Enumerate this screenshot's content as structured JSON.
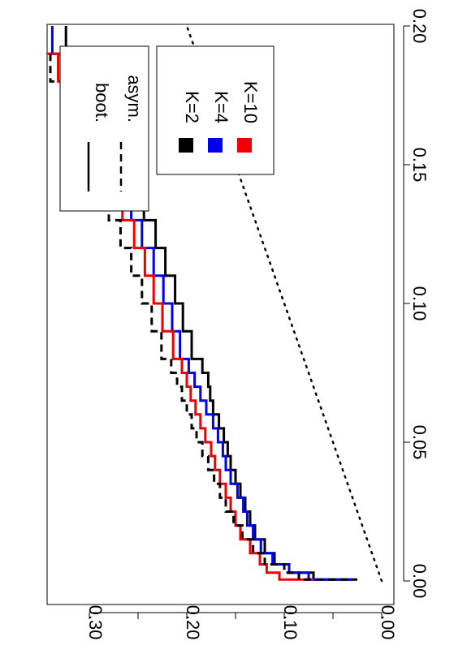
{
  "chart_data": {
    "type": "line",
    "orientation": "rotated-90-clockwise",
    "title": "",
    "xlabel": "",
    "ylabel": "",
    "xlim": [
      0,
      0.2
    ],
    "ylim": [
      0,
      0.36
    ],
    "x_ticks": [
      0.0,
      0.05,
      0.1,
      0.15,
      0.2
    ],
    "x_tick_labels": [
      "0.00",
      "0.05",
      "0.10",
      "0.15",
      "0.20"
    ],
    "y_ticks": [
      0.0,
      0.05,
      0.1,
      0.15,
      0.2,
      0.25,
      0.3
    ],
    "y_tick_labels": [
      "0.00",
      "0.10",
      "0.20",
      "0.30"
    ],
    "grid": false,
    "legends": [
      {
        "placement": "top-left",
        "entries": [
          {
            "label": "boot.",
            "style": "solid"
          },
          {
            "label": "asym.",
            "style": "dashed"
          }
        ]
      },
      {
        "placement": "top-left",
        "entries": [
          {
            "label": "K=2",
            "color": "#000000"
          },
          {
            "label": "K=4",
            "color": "#0000ee"
          },
          {
            "label": "K=10",
            "color": "#ee0000"
          }
        ]
      }
    ],
    "series": [
      {
        "name": "K=2",
        "style": "solid",
        "color": "#000000",
        "x": [
          0.0005,
          0.003,
          0.006,
          0.01,
          0.015,
          0.02,
          0.025,
          0.03,
          0.035,
          0.04,
          0.045,
          0.05,
          0.055,
          0.06,
          0.065,
          0.07,
          0.075,
          0.08,
          0.09,
          0.1,
          0.11,
          0.12,
          0.13,
          0.14,
          0.15,
          0.16,
          0.17,
          0.18,
          0.19,
          0.2
        ],
        "y": [
          0.025,
          0.07,
          0.095,
          0.11,
          0.12,
          0.13,
          0.135,
          0.14,
          0.145,
          0.15,
          0.155,
          0.158,
          0.162,
          0.167,
          0.173,
          0.176,
          0.178,
          0.184,
          0.195,
          0.204,
          0.212,
          0.222,
          0.232,
          0.244,
          0.256,
          0.268,
          0.282,
          0.296,
          0.31,
          0.324
        ]
      },
      {
        "name": "K=4",
        "style": "solid",
        "color": "#0000ee",
        "x": [
          0.0005,
          0.003,
          0.006,
          0.01,
          0.015,
          0.02,
          0.025,
          0.03,
          0.035,
          0.04,
          0.045,
          0.05,
          0.055,
          0.06,
          0.065,
          0.07,
          0.075,
          0.08,
          0.09,
          0.1,
          0.11,
          0.12,
          0.13,
          0.14,
          0.15,
          0.16,
          0.17,
          0.18,
          0.19,
          0.2
        ],
        "y": [
          0.03,
          0.075,
          0.095,
          0.112,
          0.124,
          0.132,
          0.138,
          0.142,
          0.148,
          0.155,
          0.16,
          0.163,
          0.168,
          0.173,
          0.18,
          0.186,
          0.192,
          0.198,
          0.207,
          0.215,
          0.224,
          0.234,
          0.246,
          0.257,
          0.27,
          0.284,
          0.297,
          0.311,
          0.325,
          0.338
        ]
      },
      {
        "name": "K=10",
        "style": "solid",
        "color": "#ee0000",
        "x": [
          0.0005,
          0.003,
          0.006,
          0.01,
          0.015,
          0.02,
          0.025,
          0.03,
          0.035,
          0.04,
          0.045,
          0.05,
          0.055,
          0.06,
          0.065,
          0.07,
          0.075,
          0.08,
          0.09,
          0.1,
          0.11,
          0.12,
          0.13,
          0.14,
          0.15,
          0.16,
          0.17,
          0.18,
          0.19,
          0.2
        ],
        "y": [
          0.07,
          0.105,
          0.118,
          0.125,
          0.135,
          0.145,
          0.15,
          0.155,
          0.16,
          0.166,
          0.171,
          0.175,
          0.181,
          0.186,
          0.191,
          0.196,
          0.2,
          0.205,
          0.214,
          0.225,
          0.234,
          0.243,
          0.254,
          0.266,
          0.279,
          0.292,
          0.305,
          0.318,
          0.332,
          0.346
        ]
      },
      {
        "name": "K=2",
        "style": "dashed",
        "color": "#000000",
        "x": [
          0.0005,
          0.003,
          0.006,
          0.01,
          0.015,
          0.02,
          0.025,
          0.03,
          0.035,
          0.04,
          0.045,
          0.05,
          0.055,
          0.06,
          0.065,
          0.07,
          0.075,
          0.08,
          0.09,
          0.1,
          0.11,
          0.12,
          0.13,
          0.14,
          0.15,
          0.16,
          0.17,
          0.18,
          0.19,
          0.2
        ],
        "y": [
          0.035,
          0.085,
          0.1,
          0.12,
          0.132,
          0.143,
          0.152,
          0.16,
          0.166,
          0.172,
          0.178,
          0.184,
          0.19,
          0.195,
          0.2,
          0.205,
          0.21,
          0.216,
          0.226,
          0.236,
          0.246,
          0.257,
          0.268,
          0.28,
          0.292,
          0.304,
          0.316,
          0.328,
          0.34,
          0.352
        ]
      },
      {
        "name": "",
        "style": "dotted",
        "color": "#000000",
        "x": [
          0.0,
          0.2
        ],
        "y": [
          0.0,
          0.2
        ]
      }
    ]
  }
}
